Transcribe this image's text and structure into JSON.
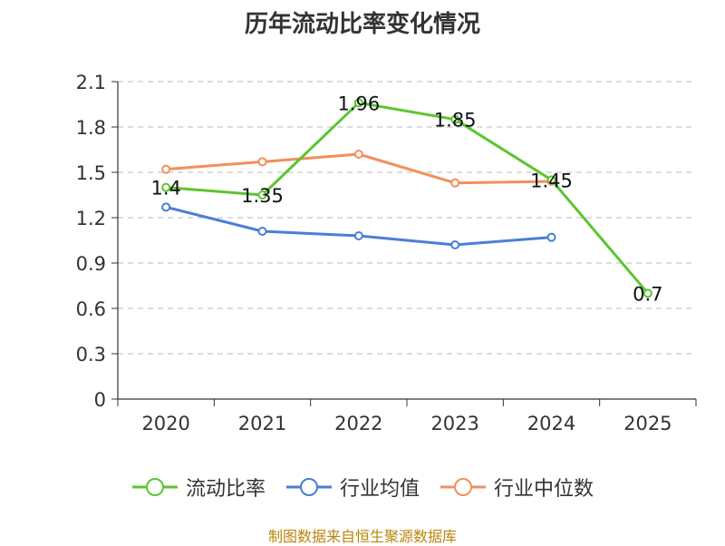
{
  "chart_data": {
    "type": "line",
    "title": "历年流动比率变化情况",
    "categories": [
      "2020",
      "2021",
      "2022",
      "2023",
      "2024",
      "2025"
    ],
    "ylim": [
      0,
      2.1
    ],
    "yticks": [
      "0",
      "0.3",
      "0.6",
      "0.9",
      "1.2",
      "1.5",
      "1.8",
      "2.1"
    ],
    "grid": true,
    "legend_position": "bottom",
    "series": [
      {
        "name": "流动比率",
        "color": "#5cc531",
        "values": [
          1.4,
          1.35,
          1.96,
          1.85,
          1.45,
          0.7
        ],
        "labels": [
          "1.4",
          "1.35",
          "1.96",
          "1.85",
          "1.45",
          "0.7"
        ]
      },
      {
        "name": "行业均值",
        "color": "#4a7fd6",
        "values": [
          1.27,
          1.11,
          1.08,
          1.02,
          1.07,
          null
        ]
      },
      {
        "name": "行业中位数",
        "color": "#f28f5c",
        "values": [
          1.52,
          1.57,
          1.62,
          1.43,
          1.44,
          null
        ]
      }
    ]
  },
  "source": "制图数据来自恒生聚源数据库"
}
